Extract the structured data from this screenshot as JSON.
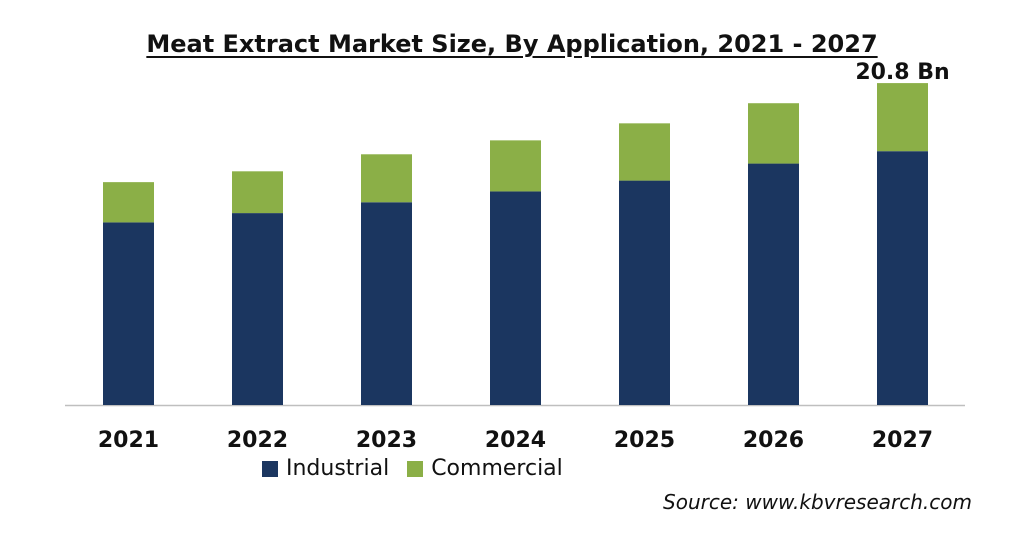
{
  "colors": {
    "industrial": "#1b3660",
    "commercial": "#8baf47",
    "axis": "#bfbfbf"
  },
  "source": "Source: www.kbvresearch.com",
  "chart_data": {
    "type": "bar",
    "stacked": true,
    "title": "Meat Extract Market Size, By Application, 2021 - 2027",
    "xlabel": "",
    "ylabel": "",
    "categories": [
      "2021",
      "2022",
      "2023",
      "2024",
      "2025",
      "2026",
      "2027"
    ],
    "series": [
      {
        "name": "Industrial",
        "values": [
          11.8,
          12.4,
          13.1,
          13.8,
          14.5,
          15.6,
          16.4
        ]
      },
      {
        "name": "Commercial",
        "values": [
          2.6,
          2.7,
          3.1,
          3.3,
          3.7,
          3.9,
          4.4
        ]
      }
    ],
    "ylim": [
      0,
      21
    ],
    "grid": false,
    "legend": "bottom",
    "annotations": [
      {
        "category": "2027",
        "text": "20.8 Bn"
      }
    ]
  }
}
